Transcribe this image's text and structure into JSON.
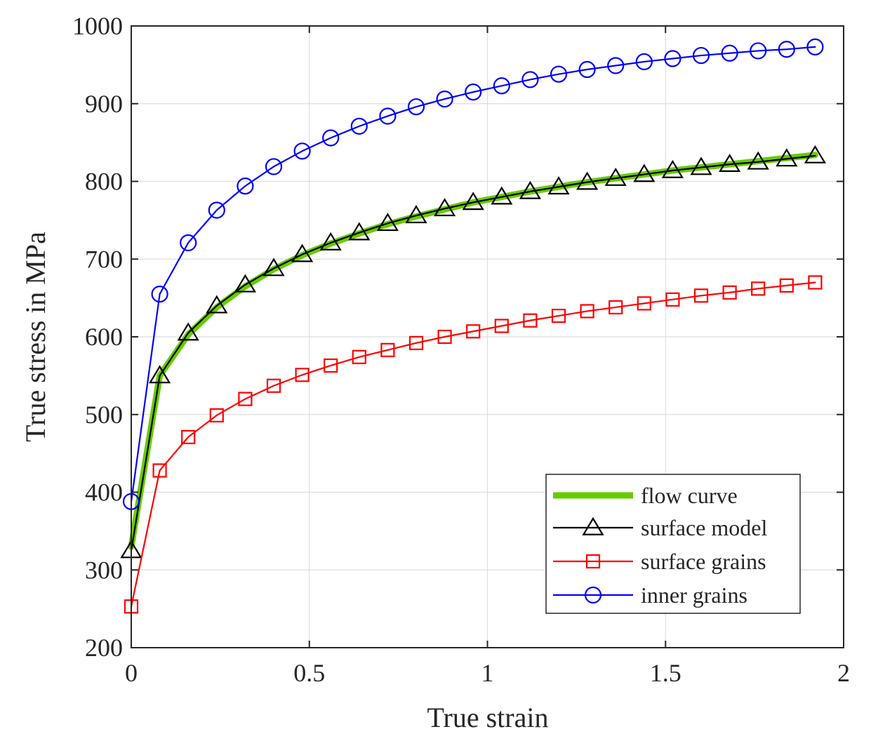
{
  "chart_data": {
    "type": "line",
    "title": "",
    "xlabel": "True strain",
    "ylabel": "True stress in MPa",
    "xlim": [
      0,
      2
    ],
    "ylim": [
      200,
      1000
    ],
    "xticks": [
      0,
      0.5,
      1,
      1.5,
      2
    ],
    "xtick_labels": [
      "0",
      "0.5",
      "1",
      "1.5",
      "2"
    ],
    "yticks": [
      200,
      300,
      400,
      500,
      600,
      700,
      800,
      900,
      1000
    ],
    "ytick_labels": [
      "200",
      "300",
      "400",
      "500",
      "600",
      "700",
      "800",
      "900",
      "1000"
    ],
    "grid": true,
    "legend_position": "bottom-right",
    "x": [
      0,
      0.08,
      0.16,
      0.24,
      0.32,
      0.4,
      0.48,
      0.56,
      0.64,
      0.72,
      0.8,
      0.88,
      0.96,
      1.04,
      1.12,
      1.2,
      1.28,
      1.36,
      1.44,
      1.52,
      1.6,
      1.68,
      1.76,
      1.84,
      1.92
    ],
    "series": [
      {
        "name": "flow curve",
        "color": "#66cc00",
        "marker": "none",
        "values": [
          330,
          550,
          603,
          638,
          665,
          687,
          705,
          720,
          733,
          745,
          755,
          764,
          773,
          780,
          787,
          793,
          799,
          804,
          809,
          814,
          818,
          822,
          826,
          830,
          834
        ]
      },
      {
        "name": "surface model",
        "color": "#000000",
        "marker": "triangle",
        "values": [
          325,
          550,
          605,
          640,
          667,
          688,
          706,
          721,
          734,
          746,
          756,
          765,
          773,
          780,
          787,
          793,
          799,
          804,
          809,
          814,
          818,
          822,
          825,
          829,
          833
        ]
      },
      {
        "name": "surface grains",
        "color": "#ff0000",
        "marker": "square",
        "values": [
          253,
          428,
          471,
          499,
          520,
          537,
          551,
          563,
          574,
          583,
          592,
          600,
          607,
          614,
          621,
          627,
          633,
          638,
          643,
          648,
          653,
          657,
          662,
          666,
          670
        ]
      },
      {
        "name": "inner grains",
        "color": "#0000ff",
        "marker": "circle",
        "values": [
          388,
          655,
          721,
          763,
          794,
          819,
          839,
          856,
          871,
          884,
          896,
          906,
          915,
          923,
          931,
          938,
          944,
          949,
          954,
          958,
          962,
          965,
          968,
          970,
          973
        ]
      }
    ]
  }
}
